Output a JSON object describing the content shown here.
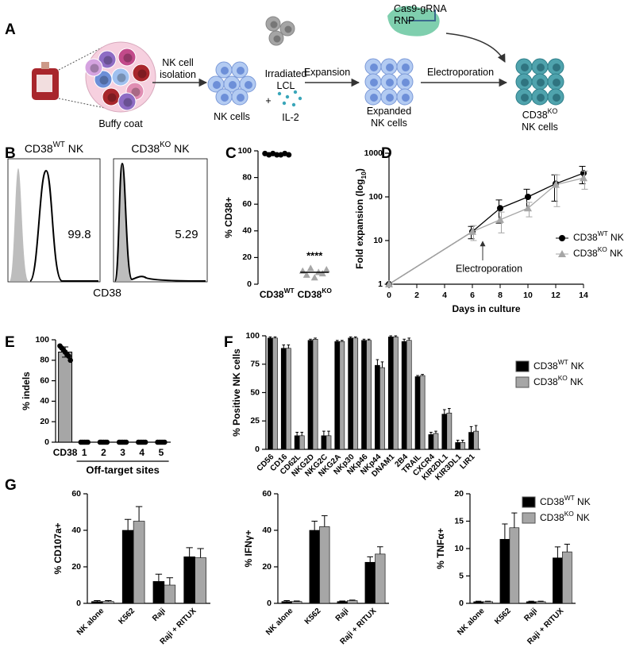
{
  "panel_labels": [
    "A",
    "B",
    "C",
    "D",
    "E",
    "F",
    "G"
  ],
  "schematic": {
    "source": [
      "Buffy coat"
    ],
    "step1": [
      "NK cell",
      "isolation"
    ],
    "cells1": [
      "NK cells"
    ],
    "feeder": [
      "Irradiated",
      "LCL"
    ],
    "plus": [
      "+"
    ],
    "cytokine": [
      "IL-2"
    ],
    "step2": [
      "Expansion"
    ],
    "cells2": [
      "Expanded",
      "NK cells"
    ],
    "reagent": [
      "Cas9-gRNA",
      "RNP"
    ],
    "step3": [
      "Electroporation"
    ],
    "cells3": [
      [
        "CD38",
        "KO"
      ],
      "NK cells"
    ]
  },
  "chart_data": [
    {
      "type": "flow",
      "xlabel": "CD38",
      "panels": [
        {
          "title": [
            "CD38",
            "WT",
            " NK"
          ],
          "value": 99.8
        },
        {
          "title": [
            "CD38",
            "KO",
            " NK"
          ],
          "value": 5.29
        }
      ]
    },
    {
      "type": "dot",
      "ylabel": "% CD38+",
      "categories": [
        [
          "CD38",
          "WT"
        ],
        [
          "CD38",
          "KO"
        ]
      ],
      "values": [
        [
          98,
          97,
          98,
          97,
          97,
          98,
          97
        ],
        [
          10,
          7,
          12,
          5,
          9,
          8,
          11
        ]
      ],
      "means": [
        97.4,
        8.9
      ],
      "colors": [
        "#000000",
        "#a6a6a6"
      ],
      "markers": [
        "circle",
        "triangle"
      ],
      "annotation": "****",
      "ylim": [
        0,
        100
      ],
      "yticks": [
        0,
        20,
        40,
        60,
        80,
        100
      ]
    },
    {
      "type": "line",
      "ylabel": [
        "Fold expansion (log",
        "10",
        ")"
      ],
      "ylabel_script": "sub",
      "xlabel": "Days in culture",
      "x": [
        0,
        6,
        8,
        10,
        12,
        14
      ],
      "series": [
        {
          "name": [
            "CD38",
            "WT",
            " NK"
          ],
          "color": "#000000",
          "marker": "circle",
          "values": [
            1,
            16,
            55,
            100,
            200,
            350
          ],
          "errors": [
            0,
            5,
            30,
            50,
            120,
            150
          ]
        },
        {
          "name": [
            "CD38",
            "KO",
            " NK"
          ],
          "color": "#a6a6a6",
          "marker": "triangle",
          "values": [
            1,
            16,
            30,
            55,
            190,
            270
          ],
          "errors": [
            0,
            6,
            15,
            20,
            130,
            120
          ]
        }
      ],
      "annotation": "Electroporation",
      "xlim": [
        0,
        14
      ],
      "xticks": [
        0,
        2,
        4,
        6,
        8,
        10,
        12,
        14
      ],
      "ylim": [
        1,
        1000
      ],
      "yticks": [
        1,
        10,
        100,
        1000
      ],
      "log_y": true,
      "legend": "right"
    },
    {
      "type": "bar_dots",
      "ylabel": "% indels",
      "categories": [
        "CD38",
        "1",
        "2",
        "3",
        "4",
        "5"
      ],
      "values": [
        88,
        0,
        0,
        0,
        0,
        0
      ],
      "errors": [
        5,
        0,
        0,
        0,
        0,
        0
      ],
      "points": [
        [
          94,
          92,
          90,
          88,
          86,
          84,
          80
        ],
        [
          0,
          0,
          0,
          0,
          0
        ],
        [
          0,
          0,
          0,
          0,
          0
        ],
        [
          0,
          0,
          0,
          0,
          0
        ],
        [
          0,
          0,
          0,
          0,
          0
        ],
        [
          0,
          0,
          0,
          0,
          0
        ]
      ],
      "group_label": "Off-target sites",
      "color": "#a6a6a6",
      "ylim": [
        0,
        100
      ],
      "yticks": [
        0,
        20,
        40,
        60,
        80,
        100
      ]
    },
    {
      "type": "grouped_bar",
      "ylabel": "% Positive NK cells",
      "categories": [
        "CD56",
        "CD16",
        "CD62L",
        "NKG2D",
        "NKG2C",
        "NKG2A",
        "NKp30",
        "NKp46",
        "NKp44",
        "DNAM1",
        "2B4",
        "TRAIL",
        "CXCR4",
        "KIR2DL1",
        "KIR3DL1",
        "LIR1"
      ],
      "series": [
        {
          "name": [
            "CD38",
            "WT",
            " NK"
          ],
          "color": "#000000",
          "values": [
            98,
            89,
            12,
            96,
            12,
            95,
            98,
            96,
            74,
            99,
            95,
            64,
            13,
            31,
            6,
            15
          ],
          "errors": [
            1,
            3,
            3,
            1,
            4,
            1,
            1,
            1,
            5,
            1,
            2,
            1,
            2,
            4,
            2,
            5
          ]
        },
        {
          "name": [
            "CD38",
            "KO",
            " NK"
          ],
          "color": "#a6a6a6",
          "values": [
            98,
            89,
            12,
            97,
            12,
            95,
            98,
            96,
            72,
            99,
            96,
            65,
            14,
            32,
            6,
            16
          ],
          "errors": [
            1,
            3,
            3,
            1,
            4,
            1,
            1,
            1,
            5,
            1,
            2,
            1,
            2,
            4,
            2,
            5
          ]
        }
      ],
      "ylim": [
        0,
        100
      ],
      "yticks": [
        0,
        25,
        50,
        75,
        100
      ],
      "legend": true
    },
    {
      "type": "grouped_bar",
      "ylabel": "% CD107a+",
      "categories": [
        "NK alone",
        "K562",
        "Raji",
        "Raji + RITUX"
      ],
      "series": [
        {
          "name": [
            "CD38",
            "WT",
            " NK"
          ],
          "color": "#000000",
          "values": [
            1,
            40,
            12,
            25.5
          ],
          "errors": [
            0.5,
            6,
            4,
            5
          ]
        },
        {
          "name": [
            "CD38",
            "KO",
            " NK"
          ],
          "color": "#a6a6a6",
          "values": [
            1,
            45,
            10,
            25
          ],
          "errors": [
            0.5,
            8,
            4,
            5
          ]
        }
      ],
      "ylim": [
        0,
        60
      ],
      "yticks": [
        0,
        20,
        40,
        60
      ],
      "legend": false
    },
    {
      "type": "grouped_bar",
      "ylabel": "% IFNγ+",
      "categories": [
        "NK alone",
        "K562",
        "Raji",
        "Raji + RITUX"
      ],
      "series": [
        {
          "name": [
            "CD38",
            "WT",
            " NK"
          ],
          "color": "#000000",
          "values": [
            1,
            40,
            1,
            22.5
          ],
          "errors": [
            0.5,
            5,
            0.3,
            3
          ]
        },
        {
          "name": [
            "CD38",
            "KO",
            " NK"
          ],
          "color": "#a6a6a6",
          "values": [
            1,
            42,
            1.5,
            27
          ],
          "errors": [
            0.3,
            6,
            0.3,
            4
          ]
        }
      ],
      "ylim": [
        0,
        60
      ],
      "yticks": [
        0,
        20,
        40,
        60
      ],
      "legend": false
    },
    {
      "type": "grouped_bar",
      "ylabel": "% TNFα+",
      "categories": [
        "NK alone",
        "K562",
        "Raji",
        "Raji + RITUX"
      ],
      "series": [
        {
          "name": [
            "CD38",
            "WT",
            " NK"
          ],
          "color": "#000000",
          "values": [
            0.3,
            11.7,
            0.3,
            8.3
          ],
          "errors": [
            0.1,
            2.8,
            0.1,
            2
          ]
        },
        {
          "name": [
            "CD38",
            "KO",
            " NK"
          ],
          "color": "#a6a6a6",
          "values": [
            0.3,
            13.8,
            0.3,
            9.4
          ],
          "errors": [
            0.1,
            2.7,
            0.1,
            1.4
          ]
        }
      ],
      "ylim": [
        0,
        20
      ],
      "yticks": [
        0,
        5,
        10,
        15,
        20
      ],
      "legend": true
    }
  ]
}
